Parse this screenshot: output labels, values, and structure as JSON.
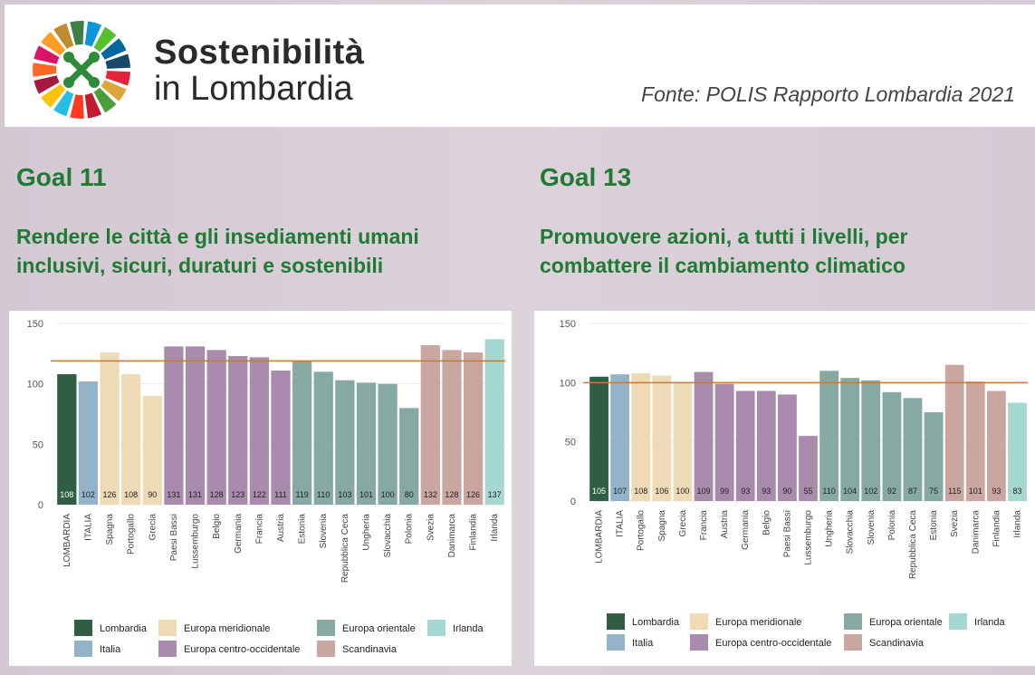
{
  "header": {
    "brand_line1": "Sostenibilità",
    "brand_line2": "in Lombardia",
    "source": "Fonte:  POLIS Rapporto Lombardia 2021"
  },
  "panels": [
    {
      "goal": "Goal 11",
      "subtitle_lines": [
        "Rendere le città e gli insediamenti umani",
        "inclusivi, sicuri, duraturi e sostenibili"
      ]
    },
    {
      "goal": "Goal 13",
      "subtitle_lines": [
        "Promuovere azioni, a tutti i livelli, per",
        "combattere il cambiamento climatico"
      ]
    }
  ],
  "chart_data": [
    {
      "type": "bar",
      "categories": [
        "LOMBARDIA",
        "ITALIA",
        "Spagna",
        "Portogallo",
        "Grecia",
        "Paesi Bassi",
        "Lussemburgo",
        "Belgio",
        "Germania",
        "Francia",
        "Austria",
        "Estonia",
        "Slovenia",
        "Repubblica Ceca",
        "Ungheria",
        "Slovacchia",
        "Polonia",
        "Svezia",
        "Danimarca",
        "Finlandia",
        "Irlanda"
      ],
      "values": [
        108,
        102,
        126,
        108,
        90,
        131,
        131,
        128,
        123,
        122,
        111,
        119,
        110,
        103,
        101,
        100,
        80,
        132,
        128,
        126,
        137
      ],
      "colors": [
        "#2f5e45",
        "#92b3c9",
        "#efdab6",
        "#efdab6",
        "#efdab6",
        "#a98bad",
        "#a98bad",
        "#a98bad",
        "#a98bad",
        "#a98bad",
        "#a98bad",
        "#87a9a4",
        "#87a9a4",
        "#87a9a4",
        "#87a9a4",
        "#87a9a4",
        "#87a9a4",
        "#caa6a1",
        "#caa6a1",
        "#caa6a1",
        "#a5d8d1"
      ],
      "reference_line": 119,
      "reference_color": "#c87a3c",
      "ylim": [
        0,
        150
      ],
      "yticks": [
        0,
        50,
        100,
        150
      ],
      "grid": true,
      "legend": [
        {
          "name": "Lombardia",
          "color": "#2f5e45"
        },
        {
          "name": "Italia",
          "color": "#92b3c9"
        },
        {
          "name": "Europa meridionale",
          "color": "#efdab6"
        },
        {
          "name": "Europa centro-occidentale",
          "color": "#a98bad"
        },
        {
          "name": "Europa orientale",
          "color": "#87a9a4"
        },
        {
          "name": "Scandinavia",
          "color": "#caa6a1"
        },
        {
          "name": "Irlanda",
          "color": "#a5d8d1"
        }
      ]
    },
    {
      "type": "bar",
      "categories": [
        "LOMBARDIA",
        "ITALIA",
        "Portogallo",
        "Spagna",
        "Grecia",
        "Francia",
        "Austria",
        "Germania",
        "Belgio",
        "Paesi Bassi",
        "Lussemburgo",
        "Ungheria",
        "Slovacchia",
        "Slovenia",
        "Polonia",
        "Repubblica Ceca",
        "Estonia",
        "Svezia",
        "Danimarca",
        "Finlandia",
        "Irlanda"
      ],
      "values": [
        105,
        107,
        108,
        106,
        100,
        109,
        99,
        93,
        93,
        90,
        55,
        110,
        104,
        102,
        92,
        87,
        75,
        115,
        101,
        93,
        83
      ],
      "colors": [
        "#2f5e45",
        "#92b3c9",
        "#efdab6",
        "#efdab6",
        "#efdab6",
        "#a98bad",
        "#a98bad",
        "#a98bad",
        "#a98bad",
        "#a98bad",
        "#a98bad",
        "#87a9a4",
        "#87a9a4",
        "#87a9a4",
        "#87a9a4",
        "#87a9a4",
        "#87a9a4",
        "#caa6a1",
        "#caa6a1",
        "#caa6a1",
        "#a5d8d1"
      ],
      "reference_line": 100,
      "reference_color": "#c87a3c",
      "ylim": [
        0,
        150
      ],
      "yticks": [
        0,
        50,
        100,
        150
      ],
      "grid": true,
      "legend": [
        {
          "name": "Lombardia",
          "color": "#2f5e45"
        },
        {
          "name": "Italia",
          "color": "#92b3c9"
        },
        {
          "name": "Europa meridionale",
          "color": "#efdab6"
        },
        {
          "name": "Europa centro-occidentale",
          "color": "#a98bad"
        },
        {
          "name": "Europa orientale",
          "color": "#87a9a4"
        },
        {
          "name": "Scandinavia",
          "color": "#caa6a1"
        },
        {
          "name": "Irlanda",
          "color": "#a5d8d1"
        }
      ]
    }
  ]
}
